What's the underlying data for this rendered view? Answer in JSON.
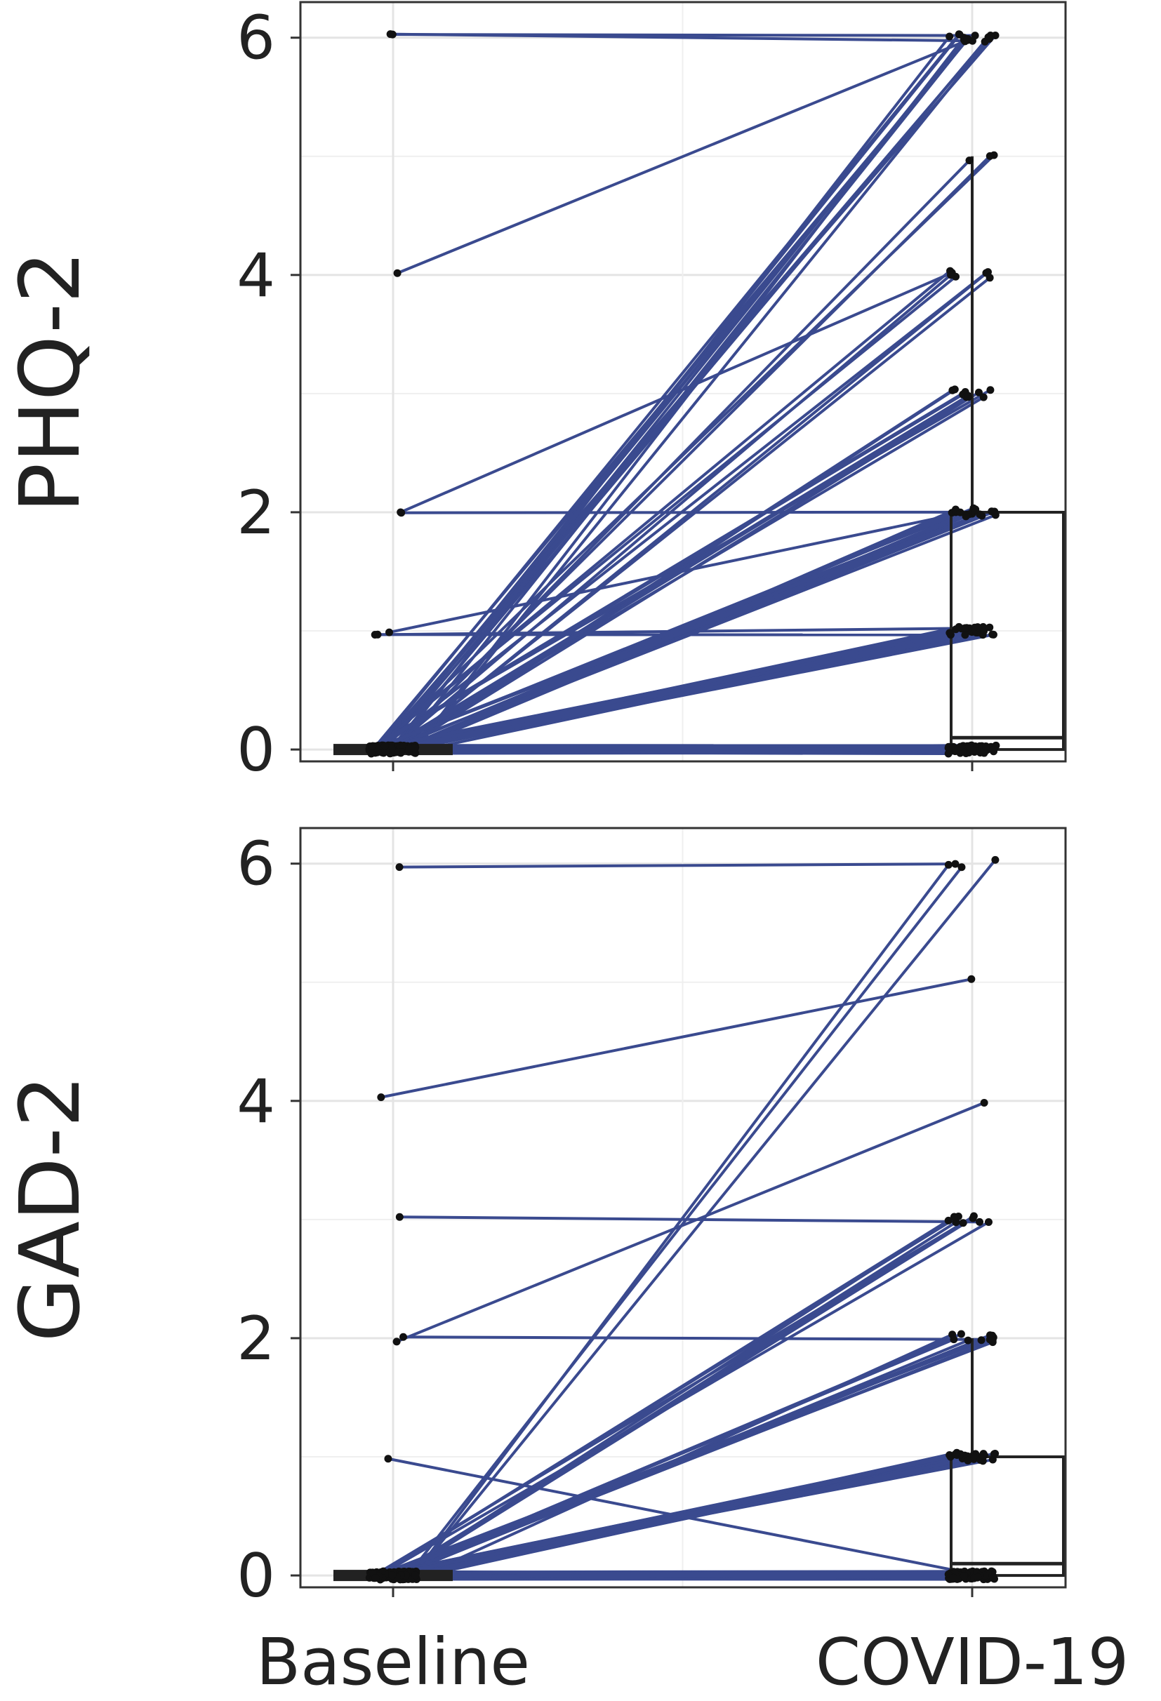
{
  "figure": {
    "colors": {
      "line": "#3A4A8F",
      "point": "#111111",
      "box": "#222222",
      "grid_major": "#E4E4E4",
      "grid_minor": "#EFEFEF",
      "panel_border": "#333333"
    },
    "x_categories": [
      "Baseline",
      "COVID-19"
    ]
  },
  "chart_data": [
    {
      "type": "line",
      "ylabel": "PHQ-2",
      "categories": [
        "Baseline",
        "COVID-19"
      ],
      "ylim": [
        -0.1,
        6.3
      ],
      "yticks": [
        0,
        2,
        4,
        6
      ],
      "grid": true,
      "paired_lines": [
        {
          "from": 6,
          "to": 6,
          "count": 2
        },
        {
          "from": 4,
          "to": 6,
          "count": 1
        },
        {
          "from": 2,
          "to": 4,
          "count": 1
        },
        {
          "from": 2,
          "to": 2,
          "count": 1
        },
        {
          "from": 1,
          "to": 1,
          "count": 2
        },
        {
          "from": 1,
          "to": 2,
          "count": 1
        },
        {
          "from": 0,
          "to": 6,
          "count": 14
        },
        {
          "from": 0,
          "to": 5,
          "count": 3
        },
        {
          "from": 0,
          "to": 4,
          "count": 6
        },
        {
          "from": 0,
          "to": 3,
          "count": 10
        },
        {
          "from": 0,
          "to": 2,
          "count": 16
        },
        {
          "from": 0,
          "to": 1,
          "count": 22
        },
        {
          "from": 0,
          "to": 0,
          "count": 60
        }
      ],
      "boxplot": {
        "Baseline": {
          "min": 0,
          "q1": 0,
          "median": 0,
          "q3": 0,
          "max": 0
        },
        "COVID-19": {
          "min": 0,
          "q1": 0,
          "median": 0.1,
          "q3": 2,
          "max": 5
        }
      }
    },
    {
      "type": "line",
      "ylabel": "GAD-2",
      "categories": [
        "Baseline",
        "COVID-19"
      ],
      "ylim": [
        -0.1,
        6.3
      ],
      "yticks": [
        0,
        2,
        4,
        6
      ],
      "grid": true,
      "paired_lines": [
        {
          "from": 6,
          "to": 6,
          "count": 1
        },
        {
          "from": 4,
          "to": 5,
          "count": 1
        },
        {
          "from": 3,
          "to": 3,
          "count": 1
        },
        {
          "from": 2,
          "to": 2,
          "count": 1
        },
        {
          "from": 2,
          "to": 4,
          "count": 1
        },
        {
          "from": 1,
          "to": 0,
          "count": 1
        },
        {
          "from": 0,
          "to": 6,
          "count": 3
        },
        {
          "from": 0,
          "to": 3,
          "count": 8
        },
        {
          "from": 0,
          "to": 2,
          "count": 10
        },
        {
          "from": 0,
          "to": 1,
          "count": 24
        },
        {
          "from": 0,
          "to": 0,
          "count": 70
        }
      ],
      "boxplot": {
        "Baseline": {
          "min": 0,
          "q1": 0,
          "median": 0,
          "q3": 0,
          "max": 0
        },
        "COVID-19": {
          "min": 0,
          "q1": 0,
          "median": 0.1,
          "q3": 1,
          "max": 2
        }
      }
    }
  ]
}
